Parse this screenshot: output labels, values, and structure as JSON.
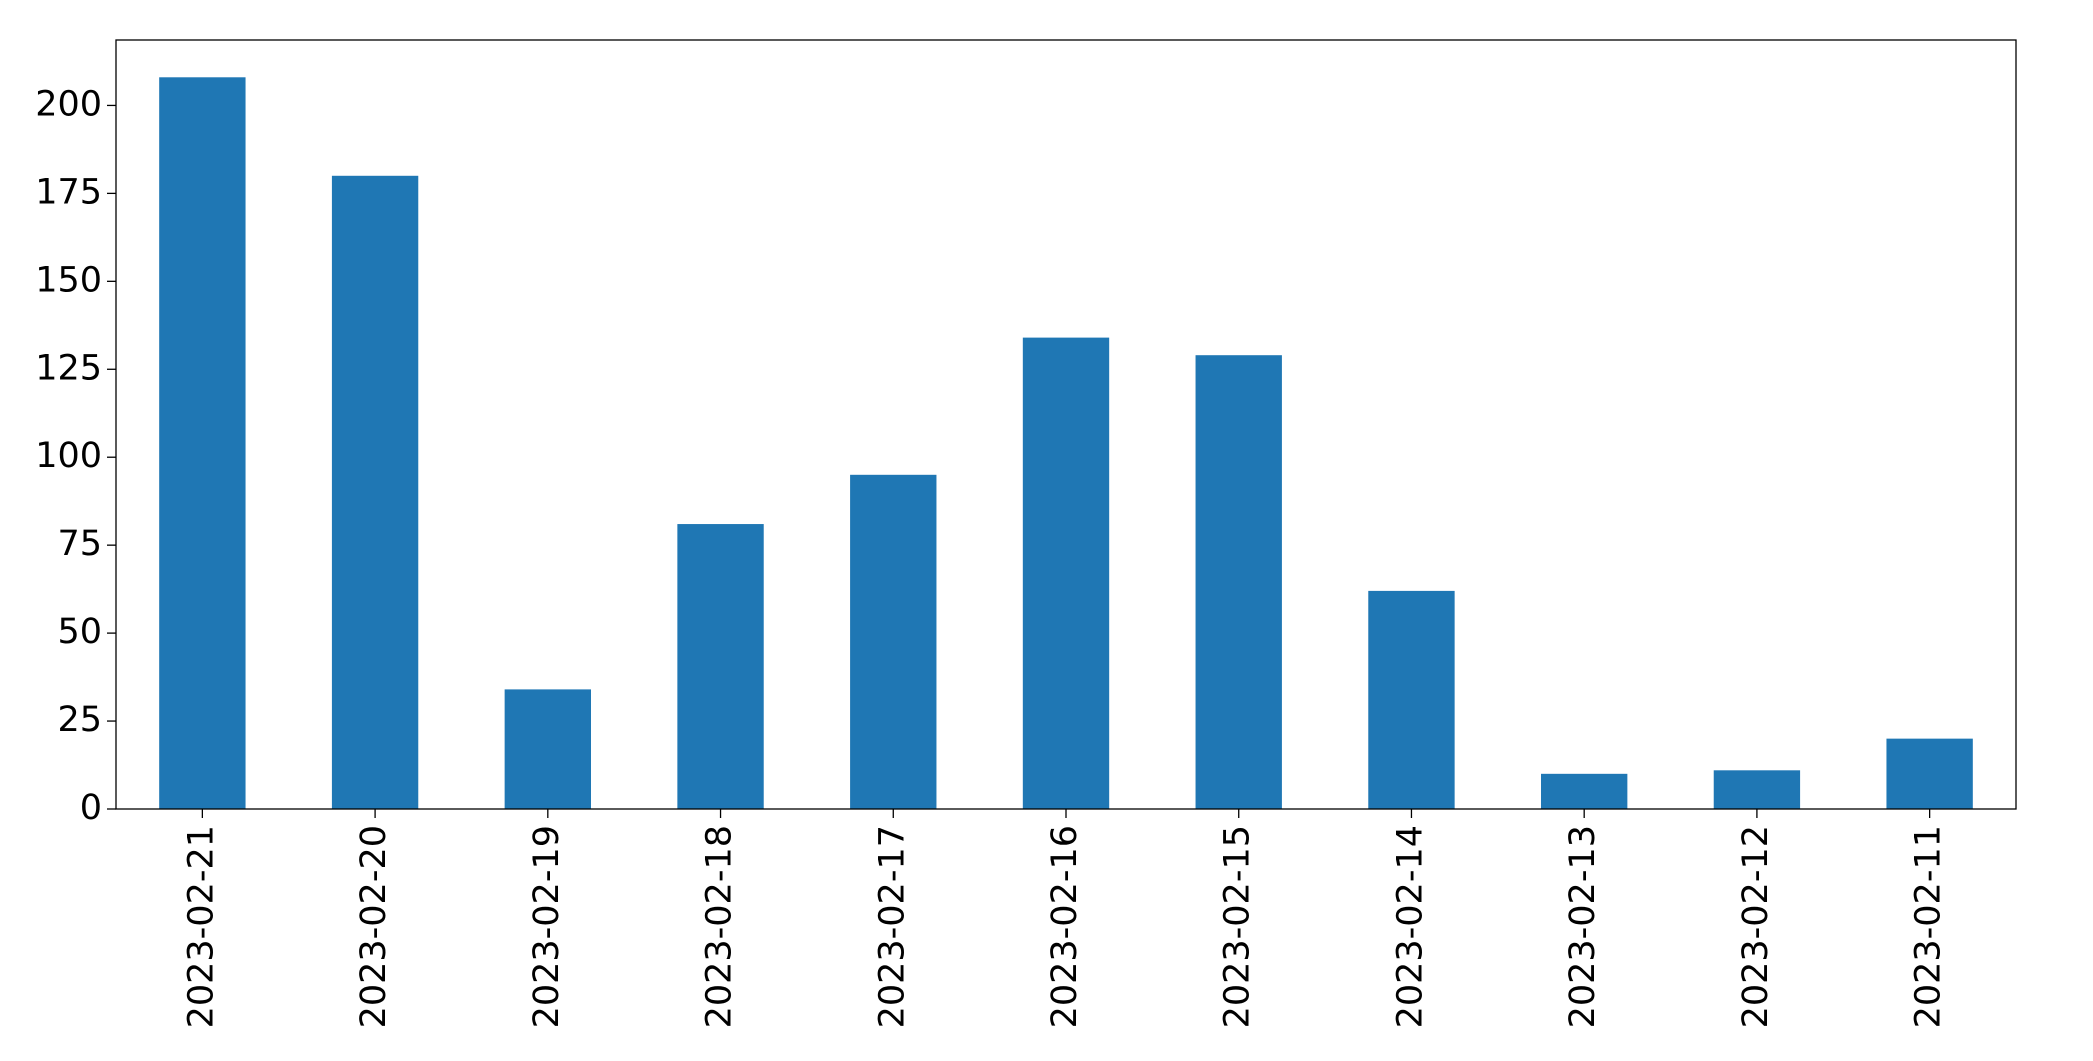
{
  "chart_data": {
    "type": "bar",
    "categories": [
      "2023-02-21",
      "2023-02-20",
      "2023-02-19",
      "2023-02-18",
      "2023-02-17",
      "2023-02-16",
      "2023-02-15",
      "2023-02-14",
      "2023-02-13",
      "2023-02-12",
      "2023-02-11"
    ],
    "values": [
      208,
      180,
      34,
      81,
      95,
      134,
      129,
      62,
      10,
      11,
      20
    ],
    "color": "#1f77b4",
    "ylim": [
      0,
      218.6
    ],
    "yticks": [
      0,
      25,
      50,
      75,
      100,
      125,
      150,
      175,
      200
    ],
    "grid": false
  }
}
